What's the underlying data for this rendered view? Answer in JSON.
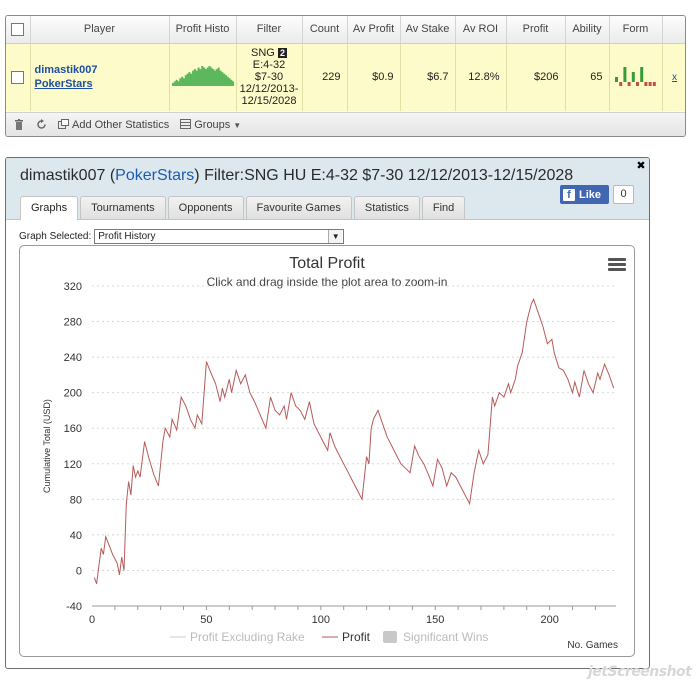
{
  "table": {
    "headers": [
      "",
      "Player",
      "Profit Histo",
      "Filter",
      "Count",
      "Av Profit",
      "Av Stake",
      "Av ROI",
      "Profit",
      "Ability",
      "Form",
      ""
    ],
    "row": {
      "player_name": "dimastik007",
      "player_site": "PokerStars",
      "filter_line1": "SNG",
      "filter_badge": "2",
      "filter_line2": "E:4-32",
      "filter_line3": "$7-30",
      "filter_line4": "12/12/2013-",
      "filter_line5": "12/15/2028",
      "count": "229",
      "av_profit": "$0.9",
      "av_stake": "$6.7",
      "av_roi": "12.8%",
      "profit": "$206",
      "ability": "65",
      "remove_label": "x",
      "histo_values": [
        2,
        3,
        4,
        3,
        5,
        6,
        5,
        7,
        8,
        9,
        8,
        10,
        11,
        10,
        12,
        11,
        13,
        12,
        11,
        12,
        13,
        12,
        11,
        10,
        11,
        12,
        10,
        9,
        8,
        7,
        6,
        5,
        4,
        3
      ],
      "form_values": [
        1,
        -1,
        3,
        -1,
        2,
        -1,
        3,
        -1,
        -1,
        -1
      ]
    }
  },
  "toolbar": {
    "add_stats_label": "Add Other Statistics",
    "groups_label": "Groups"
  },
  "panel": {
    "title_prefix": "dimastik007 (",
    "title_site": "PokerStars",
    "title_suffix": ") Filter:SNG HU E:4-32 $7-30 12/12/2013-12/15/2028",
    "like_label": "Like",
    "like_count": "0",
    "tabs": [
      "Graphs",
      "Tournaments",
      "Opponents",
      "Favourite Games",
      "Statistics",
      "Find"
    ],
    "graph_selected_label": "Graph Selected:",
    "graph_selected_value": "Profit History"
  },
  "colors": {
    "profit_line": "#b85a5a",
    "histo_green": "#5cb85c",
    "form_green": "#3a9a3a",
    "form_red": "#c0504d"
  },
  "chart_data": {
    "type": "line",
    "title": "Total Profit",
    "subtitle": "Click and drag inside the plot area to zoom-in",
    "xlabel": "No. Games",
    "ylabel": "Cumulative Total (USD)",
    "xlim": [
      0,
      229
    ],
    "ylim": [
      -40,
      320
    ],
    "x_ticks": [
      "0",
      "50",
      "100",
      "150",
      "200"
    ],
    "y_ticks": [
      "320",
      "280",
      "240",
      "200",
      "160",
      "120",
      "80",
      "40",
      "0",
      "-40"
    ],
    "legend": [
      "Profit Excluding Rake",
      "Profit",
      "Significant Wins"
    ],
    "series": [
      {
        "name": "Profit",
        "points": [
          [
            1,
            -8
          ],
          [
            2,
            -15
          ],
          [
            4,
            25
          ],
          [
            5,
            18
          ],
          [
            6,
            38
          ],
          [
            8,
            25
          ],
          [
            9,
            18
          ],
          [
            11,
            8
          ],
          [
            12,
            -5
          ],
          [
            13,
            15
          ],
          [
            14,
            0
          ],
          [
            15,
            75
          ],
          [
            16,
            100
          ],
          [
            17,
            85
          ],
          [
            18,
            118
          ],
          [
            19,
            105
          ],
          [
            20,
            112
          ],
          [
            21,
            105
          ],
          [
            23,
            145
          ],
          [
            25,
            125
          ],
          [
            27,
            108
          ],
          [
            29,
            95
          ],
          [
            31,
            145
          ],
          [
            32,
            160
          ],
          [
            34,
            150
          ],
          [
            35,
            170
          ],
          [
            37,
            158
          ],
          [
            39,
            195
          ],
          [
            41,
            185
          ],
          [
            43,
            170
          ],
          [
            45,
            160
          ],
          [
            46,
            175
          ],
          [
            48,
            165
          ],
          [
            50,
            235
          ],
          [
            52,
            222
          ],
          [
            54,
            210
          ],
          [
            56,
            190
          ],
          [
            57,
            205
          ],
          [
            58,
            195
          ],
          [
            60,
            215
          ],
          [
            61,
            200
          ],
          [
            63,
            225
          ],
          [
            65,
            210
          ],
          [
            67,
            220
          ],
          [
            69,
            200
          ],
          [
            71,
            190
          ],
          [
            74,
            172
          ],
          [
            76,
            160
          ],
          [
            78,
            195
          ],
          [
            80,
            180
          ],
          [
            82,
            175
          ],
          [
            84,
            185
          ],
          [
            85,
            170
          ],
          [
            87,
            200
          ],
          [
            89,
            185
          ],
          [
            91,
            180
          ],
          [
            93,
            170
          ],
          [
            95,
            190
          ],
          [
            97,
            165
          ],
          [
            99,
            155
          ],
          [
            101,
            145
          ],
          [
            103,
            135
          ],
          [
            104,
            155
          ],
          [
            106,
            140
          ],
          [
            108,
            130
          ],
          [
            110,
            120
          ],
          [
            112,
            110
          ],
          [
            114,
            100
          ],
          [
            116,
            90
          ],
          [
            118,
            80
          ],
          [
            120,
            128
          ],
          [
            121,
            120
          ],
          [
            122,
            160
          ],
          [
            123,
            170
          ],
          [
            125,
            180
          ],
          [
            127,
            165
          ],
          [
            129,
            150
          ],
          [
            131,
            140
          ],
          [
            133,
            130
          ],
          [
            135,
            120
          ],
          [
            137,
            115
          ],
          [
            139,
            110
          ],
          [
            141,
            140
          ],
          [
            143,
            128
          ],
          [
            145,
            120
          ],
          [
            147,
            108
          ],
          [
            149,
            95
          ],
          [
            151,
            125
          ],
          [
            153,
            115
          ],
          [
            155,
            95
          ],
          [
            157,
            110
          ],
          [
            159,
            105
          ],
          [
            161,
            95
          ],
          [
            163,
            85
          ],
          [
            165,
            75
          ],
          [
            167,
            110
          ],
          [
            169,
            135
          ],
          [
            171,
            120
          ],
          [
            173,
            130
          ],
          [
            175,
            195
          ],
          [
            176,
            185
          ],
          [
            178,
            200
          ],
          [
            180,
            195
          ],
          [
            182,
            210
          ],
          [
            183,
            200
          ],
          [
            185,
            215
          ],
          [
            186,
            230
          ],
          [
            188,
            245
          ],
          [
            190,
            280
          ],
          [
            192,
            300
          ],
          [
            193,
            305
          ],
          [
            195,
            290
          ],
          [
            197,
            275
          ],
          [
            199,
            255
          ],
          [
            201,
            260
          ],
          [
            202,
            245
          ],
          [
            204,
            228
          ],
          [
            206,
            225
          ],
          [
            208,
            215
          ],
          [
            210,
            200
          ],
          [
            211,
            212
          ],
          [
            213,
            195
          ],
          [
            215,
            225
          ],
          [
            217,
            210
          ],
          [
            219,
            200
          ],
          [
            221,
            222
          ],
          [
            222,
            215
          ],
          [
            224,
            232
          ],
          [
            226,
            220
          ],
          [
            228,
            205
          ]
        ]
      }
    ]
  }
}
